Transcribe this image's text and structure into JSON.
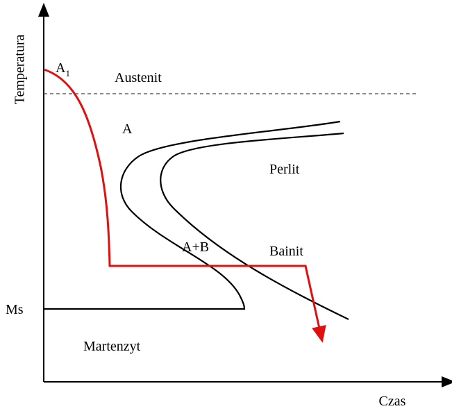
{
  "axes": {
    "y_label": "Temperatura",
    "x_label": "Czas"
  },
  "labels": {
    "a1": {
      "text": "A",
      "sub": "1"
    },
    "austenit": "Austenit",
    "a": "A",
    "perlit": "Perlit",
    "ab": "A+B",
    "bainit": "Bainit",
    "ms": "Ms",
    "martenzyt": "Martenzyt"
  }
}
